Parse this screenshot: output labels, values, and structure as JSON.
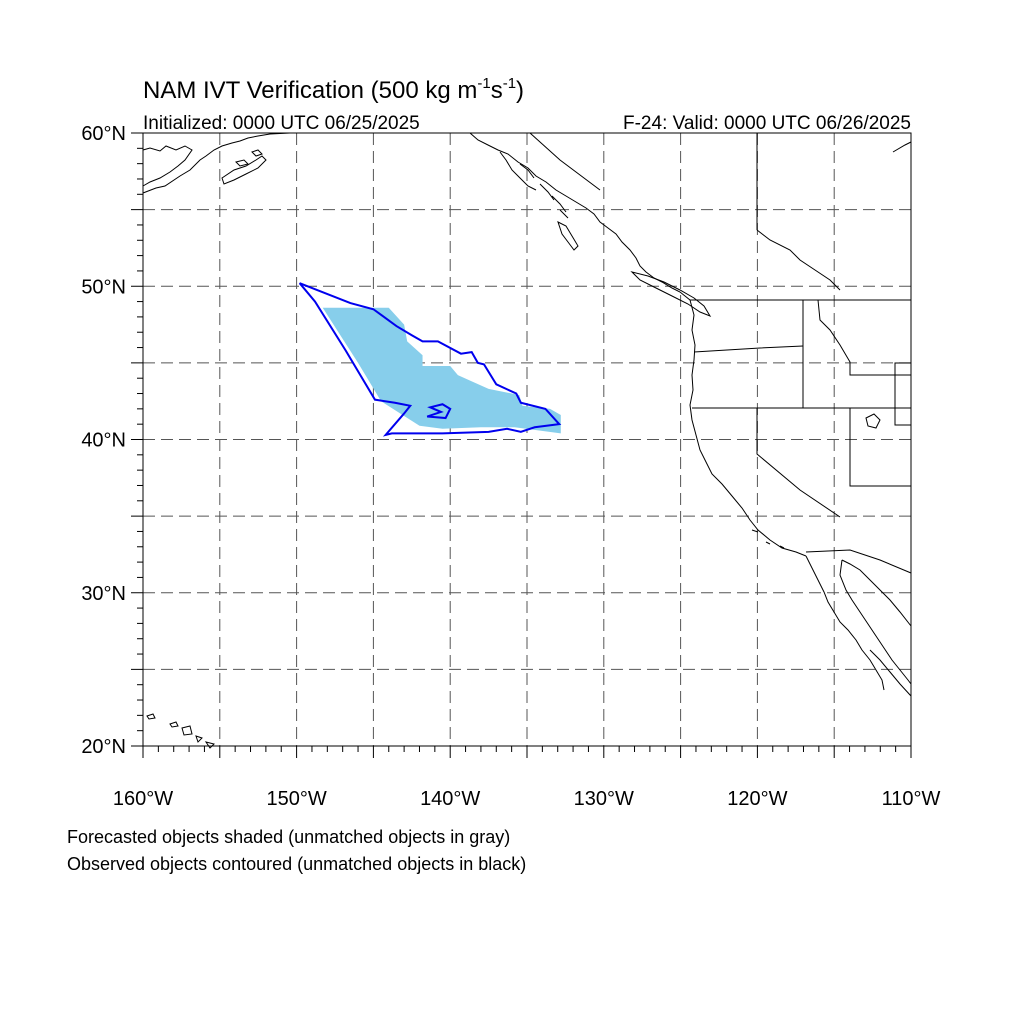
{
  "title": {
    "main": "NAM IVT Verification (500 kg m",
    "exp1": "-1",
    "mid": "s",
    "exp2": "-1",
    "close": ")"
  },
  "subtitle": {
    "left": "Initialized: 0000 UTC 06/25/2025",
    "right": "F-24: Valid: 0000 UTC 06/26/2025"
  },
  "footnotes": [
    "Forecasted objects shaded (unmatched objects in gray)",
    "Observed objects contoured (unmatched objects in black)"
  ],
  "map": {
    "lon_range": [
      -160,
      -110
    ],
    "lat_range": [
      20,
      60
    ],
    "lon_ticks": [
      {
        "value": -160,
        "label": "160°W"
      },
      {
        "value": -150,
        "label": "150°W"
      },
      {
        "value": -140,
        "label": "140°W"
      },
      {
        "value": -130,
        "label": "130°W"
      },
      {
        "value": -120,
        "label": "120°W"
      },
      {
        "value": -110,
        "label": "110°W"
      }
    ],
    "lat_ticks": [
      {
        "value": 60,
        "label": "60°N"
      },
      {
        "value": 50,
        "label": "50°N"
      },
      {
        "value": 40,
        "label": "40°N"
      },
      {
        "value": 30,
        "label": "30°N"
      },
      {
        "value": 20,
        "label": "20°N"
      }
    ],
    "grid_lon": [
      -155,
      -150,
      -145,
      -140,
      -135,
      -130,
      -125,
      -120,
      -115
    ],
    "grid_lat": [
      55,
      50,
      45,
      40,
      35,
      30,
      25
    ],
    "grid_style": "dashed",
    "colors": {
      "forecast_fill": "#87ceeb",
      "observed_contour": "#0000ee",
      "coastline": "#000000",
      "grid": "#555555"
    },
    "forecast_object": [
      [
        -148.3,
        48.6
      ],
      [
        -144.0,
        48.6
      ],
      [
        -143.0,
        47.5
      ],
      [
        -142.8,
        46.4
      ],
      [
        -141.8,
        45.5
      ],
      [
        -141.8,
        44.8
      ],
      [
        -140.0,
        44.8
      ],
      [
        -139.5,
        44.2
      ],
      [
        -137.5,
        43.3
      ],
      [
        -135.5,
        42.9
      ],
      [
        -135.3,
        42.2
      ],
      [
        -133.5,
        42.0
      ],
      [
        -132.8,
        41.6
      ],
      [
        -132.8,
        40.4
      ],
      [
        -135.8,
        40.8
      ],
      [
        -138.0,
        40.8
      ],
      [
        -140.5,
        40.7
      ],
      [
        -142.0,
        40.9
      ],
      [
        -144.5,
        42.5
      ],
      [
        -146.0,
        45.0
      ]
    ],
    "observed_contours": [
      [
        [
          -149.8,
          50.2
        ],
        [
          -146.5,
          48.9
        ],
        [
          -145.0,
          48.5
        ],
        [
          -143.5,
          47.4
        ],
        [
          -142.5,
          46.8
        ],
        [
          -141.8,
          46.4
        ],
        [
          -140.8,
          46.4
        ],
        [
          -139.3,
          45.6
        ],
        [
          -138.6,
          45.7
        ],
        [
          -138.2,
          45.0
        ],
        [
          -137.8,
          44.9
        ],
        [
          -137.0,
          43.6
        ],
        [
          -135.7,
          43.0
        ],
        [
          -135.4,
          42.4
        ],
        [
          -133.8,
          42.0
        ],
        [
          -132.9,
          41.0
        ],
        [
          -134.5,
          40.8
        ],
        [
          -135.4,
          40.5
        ],
        [
          -136.3,
          40.7
        ],
        [
          -137.5,
          40.5
        ],
        [
          -140.5,
          40.4
        ],
        [
          -143.8,
          40.4
        ],
        [
          -144.2,
          40.3
        ],
        [
          -143.0,
          41.7
        ],
        [
          -142.6,
          42.2
        ],
        [
          -143.6,
          42.4
        ],
        [
          -144.9,
          42.6
        ],
        [
          -146.8,
          45.8
        ],
        [
          -148.8,
          49.0
        ]
      ],
      [
        [
          -141.3,
          42.1
        ],
        [
          -140.5,
          42.3
        ],
        [
          -140.0,
          42.0
        ],
        [
          -140.3,
          41.4
        ],
        [
          -141.5,
          41.5
        ],
        [
          -140.6,
          41.8
        ]
      ]
    ]
  }
}
